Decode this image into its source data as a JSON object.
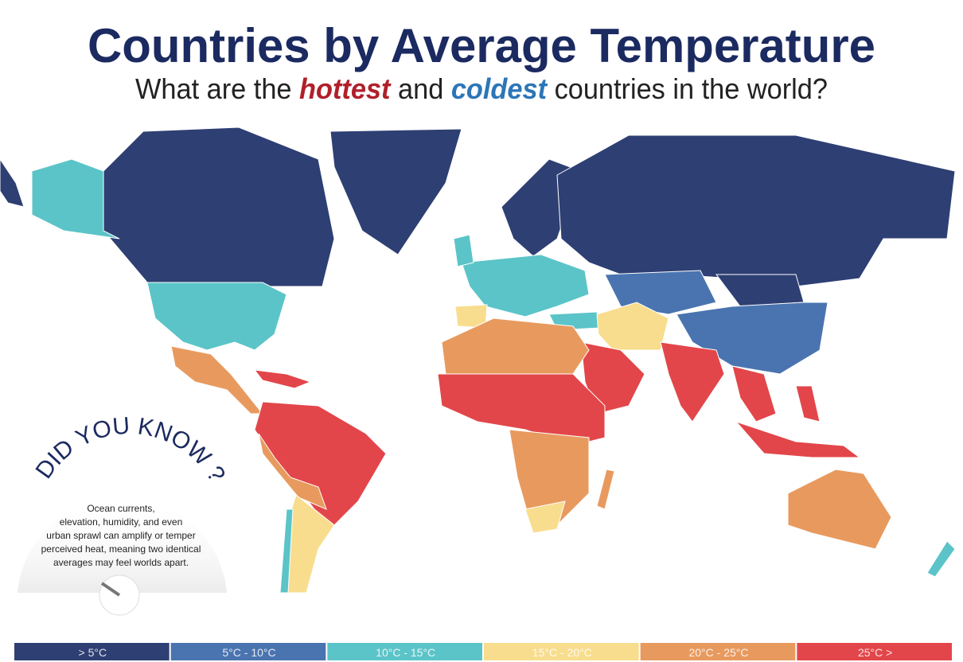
{
  "header": {
    "title": "Countries by Average Temperature",
    "subtitle": {
      "parts": [
        "What are the",
        "hottest",
        "and",
        "coldest",
        "countries in the world?"
      ]
    }
  },
  "did_you_know": {
    "heading": "DID YOU KNOW ?",
    "lines": [
      "Ocean currents,",
      "elevation, humidity, and even",
      "urban sprawl can amplify or temper",
      "perceived heat, meaning two identical",
      "averages may feel worlds apart."
    ]
  },
  "legend": {
    "items": [
      {
        "label": "> 5°C",
        "color": "#2e3f73"
      },
      {
        "label": "5°C - 10°C",
        "color": "#4a74b0"
      },
      {
        "label": "10°C - 15°C",
        "color": "#5bc4c8"
      },
      {
        "label": "15°C - 20°C",
        "color": "#f8dd8e"
      },
      {
        "label": "20°C - 25°C",
        "color": "#e89a5e"
      },
      {
        "label": "25°C >",
        "color": "#e2464a"
      }
    ]
  }
}
